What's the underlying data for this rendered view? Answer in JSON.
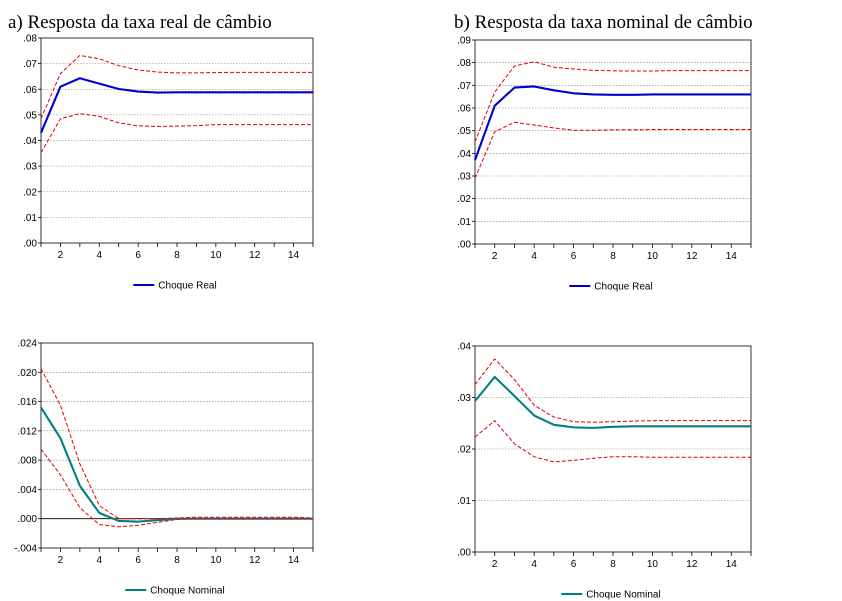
{
  "colors": {
    "real": "#0000cc",
    "nominal": "#008080",
    "band": "#e00000",
    "grid": "#808080",
    "axis": "#000000"
  },
  "chart_data": [
    {
      "type": "line",
      "title": "a) Resposta da taxa real de câmbio",
      "x": [
        1,
        2,
        3,
        4,
        5,
        6,
        7,
        8,
        9,
        10,
        11,
        12,
        13,
        14,
        15
      ],
      "xticks": [
        "2",
        "4",
        "6",
        "8",
        "10",
        "12",
        "14"
      ],
      "ylim": [
        0,
        0.08
      ],
      "yticks": [
        ".00",
        ".01",
        ".02",
        ".03",
        ".04",
        ".05",
        ".06",
        ".07",
        ".08"
      ],
      "grid": true,
      "legend": "bottom-center",
      "series": [
        {
          "name": "Choque Real",
          "role": "response",
          "color": "#0000cc",
          "values": [
            0.043,
            0.061,
            0.0643,
            0.0622,
            0.0601,
            0.0591,
            0.0587,
            0.0588,
            0.0588,
            0.0588,
            0.0588,
            0.0588,
            0.0588,
            0.0588,
            0.0588
          ]
        },
        {
          "role": "upper",
          "color": "#e00000",
          "values": [
            0.0485,
            0.0661,
            0.0732,
            0.0719,
            0.0692,
            0.0675,
            0.0667,
            0.0664,
            0.0664,
            0.0665,
            0.0666,
            0.0666,
            0.0666,
            0.0666,
            0.0666
          ]
        },
        {
          "role": "lower",
          "color": "#e00000",
          "values": [
            0.0352,
            0.0485,
            0.0505,
            0.0494,
            0.0469,
            0.0457,
            0.0455,
            0.0456,
            0.0458,
            0.0462,
            0.0462,
            0.0462,
            0.0462,
            0.0462,
            0.0462
          ]
        }
      ]
    },
    {
      "type": "line",
      "title": "b) Resposta da taxa nominal de câmbio",
      "x": [
        1,
        2,
        3,
        4,
        5,
        6,
        7,
        8,
        9,
        10,
        11,
        12,
        13,
        14,
        15
      ],
      "xticks": [
        "2",
        "4",
        "6",
        "8",
        "10",
        "12",
        "14"
      ],
      "ylim": [
        0,
        0.09
      ],
      "yticks": [
        ".00",
        ".01",
        ".02",
        ".03",
        ".04",
        ".05",
        ".06",
        ".07",
        ".08",
        ".09"
      ],
      "grid": true,
      "legend": "bottom-center",
      "series": [
        {
          "name": "Choque Real",
          "role": "response",
          "color": "#0000cc",
          "values": [
            0.037,
            0.061,
            0.069,
            0.0695,
            0.0678,
            0.0665,
            0.066,
            0.0658,
            0.0658,
            0.066,
            0.066,
            0.066,
            0.066,
            0.066,
            0.066
          ]
        },
        {
          "role": "upper",
          "color": "#e00000",
          "values": [
            0.045,
            0.067,
            0.0785,
            0.0804,
            0.078,
            0.0772,
            0.0766,
            0.0764,
            0.0763,
            0.0763,
            0.0765,
            0.0765,
            0.0765,
            0.0765,
            0.0765
          ]
        },
        {
          "role": "lower",
          "color": "#e00000",
          "values": [
            0.029,
            0.0495,
            0.0537,
            0.0525,
            0.0512,
            0.0502,
            0.0502,
            0.0504,
            0.0504,
            0.0505,
            0.0505,
            0.0505,
            0.0505,
            0.0505,
            0.0505
          ]
        }
      ]
    },
    {
      "type": "line",
      "title": "",
      "x": [
        1,
        2,
        3,
        4,
        5,
        6,
        7,
        8,
        9,
        10,
        11,
        12,
        13,
        14,
        15
      ],
      "xticks": [
        "2",
        "4",
        "6",
        "8",
        "10",
        "12",
        "14"
      ],
      "ylim": [
        -0.004,
        0.024
      ],
      "yticks": [
        "-.004",
        ".000",
        ".004",
        ".008",
        ".012",
        ".016",
        ".020",
        ".024"
      ],
      "zero_line": true,
      "grid": true,
      "legend": "bottom-center",
      "series": [
        {
          "name": "Choque Nominal",
          "role": "response",
          "color": "#008080",
          "values": [
            0.0152,
            0.011,
            0.0045,
            0.0008,
            -0.0003,
            -0.0004,
            -0.0002,
            0.0,
            0.0,
            0.0,
            0.0,
            0.0,
            0.0,
            0.0,
            0.0
          ]
        },
        {
          "role": "upper",
          "color": "#e00000",
          "values": [
            0.0205,
            0.0155,
            0.0075,
            0.0018,
            0.0,
            0.0,
            0.0,
            0.0001,
            0.0002,
            0.0002,
            0.0002,
            0.0002,
            0.0002,
            0.0002,
            0.0001
          ]
        },
        {
          "role": "lower",
          "color": "#e00000",
          "values": [
            0.0095,
            0.006,
            0.0015,
            -0.0008,
            -0.0011,
            -0.0009,
            -0.0005,
            -0.0001,
            0.0,
            0.0,
            0.0,
            0.0,
            0.0,
            0.0,
            0.0
          ]
        }
      ]
    },
    {
      "type": "line",
      "title": "",
      "x": [
        1,
        2,
        3,
        4,
        5,
        6,
        7,
        8,
        9,
        10,
        11,
        12,
        13,
        14,
        15
      ],
      "xticks": [
        "2",
        "4",
        "6",
        "8",
        "10",
        "12",
        "14"
      ],
      "ylim": [
        0,
        0.04
      ],
      "yticks": [
        ".00",
        ".01",
        ".02",
        ".03",
        ".04"
      ],
      "grid": true,
      "legend": "bottom-center",
      "series": [
        {
          "name": "Choque Nominal",
          "role": "response",
          "color": "#008080",
          "values": [
            0.0293,
            0.034,
            0.0303,
            0.0265,
            0.0247,
            0.0242,
            0.0241,
            0.0243,
            0.0244,
            0.0244,
            0.0244,
            0.0244,
            0.0244,
            0.0244,
            0.0244
          ]
        },
        {
          "role": "upper",
          "color": "#e00000",
          "values": [
            0.0325,
            0.0375,
            0.0335,
            0.0285,
            0.0262,
            0.0253,
            0.0252,
            0.0253,
            0.0254,
            0.0255,
            0.0255,
            0.0255,
            0.0255,
            0.0255,
            0.0255
          ]
        },
        {
          "role": "lower",
          "color": "#e00000",
          "values": [
            0.0223,
            0.0255,
            0.021,
            0.0185,
            0.0175,
            0.0178,
            0.0182,
            0.0185,
            0.0185,
            0.0184,
            0.0184,
            0.0184,
            0.0184,
            0.0184,
            0.0184
          ]
        }
      ]
    }
  ]
}
